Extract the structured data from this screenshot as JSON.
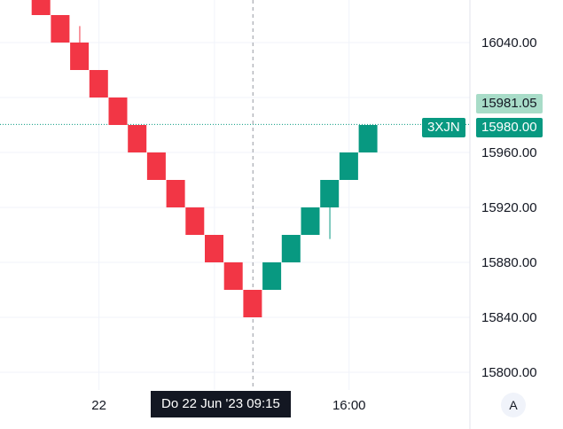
{
  "chart_data": {
    "type": "renko",
    "title": "",
    "box_size": 20,
    "ylim": [
      15785,
      16080
    ],
    "y_ticks": [
      15800,
      15840,
      15880,
      15920,
      15960,
      16040
    ],
    "y_tick_labels": [
      "15800.00",
      "15840.00",
      "15880.00",
      "15920.00",
      "15960.00",
      "16040.00"
    ],
    "x_tick_labels": [
      {
        "label": "22",
        "brick_index": 4
      },
      {
        "label": "16:00",
        "brick_index": 17
      }
    ],
    "down_color": "#f23645",
    "up_color": "#089981",
    "bricks": [
      {
        "dir": "down",
        "open": 16100,
        "close": 16080
      },
      {
        "dir": "down",
        "open": 16080,
        "close": 16060
      },
      {
        "dir": "down",
        "open": 16060,
        "close": 16040
      },
      {
        "dir": "down",
        "open": 16040,
        "close": 16020,
        "wick_high": 16052
      },
      {
        "dir": "down",
        "open": 16020,
        "close": 16000
      },
      {
        "dir": "down",
        "open": 16000,
        "close": 15980
      },
      {
        "dir": "down",
        "open": 15980,
        "close": 15960
      },
      {
        "dir": "down",
        "open": 15960,
        "close": 15940
      },
      {
        "dir": "down",
        "open": 15940,
        "close": 15920
      },
      {
        "dir": "down",
        "open": 15920,
        "close": 15900
      },
      {
        "dir": "down",
        "open": 15900,
        "close": 15880
      },
      {
        "dir": "down",
        "open": 15880,
        "close": 15860
      },
      {
        "dir": "down",
        "open": 15860,
        "close": 15840
      },
      {
        "dir": "up",
        "open": 15860,
        "close": 15880
      },
      {
        "dir": "up",
        "open": 15880,
        "close": 15900
      },
      {
        "dir": "up",
        "open": 15900,
        "close": 15920
      },
      {
        "dir": "up",
        "open": 15920,
        "close": 15940,
        "wick_low": 15897
      },
      {
        "dir": "up",
        "open": 15940,
        "close": 15960
      },
      {
        "dir": "up",
        "open": 15960,
        "close": 15980
      }
    ],
    "last_price": 15980.0,
    "price_line_value": 15981.05,
    "crosshair_brick_index": 12,
    "grid": true
  },
  "labels": {
    "symbol": "3XJN",
    "last_price_label": "15980.00",
    "price_pill_label": "15981.05",
    "time_tooltip": "Do 22 Jun '23   09:15",
    "auto_button": "A"
  }
}
